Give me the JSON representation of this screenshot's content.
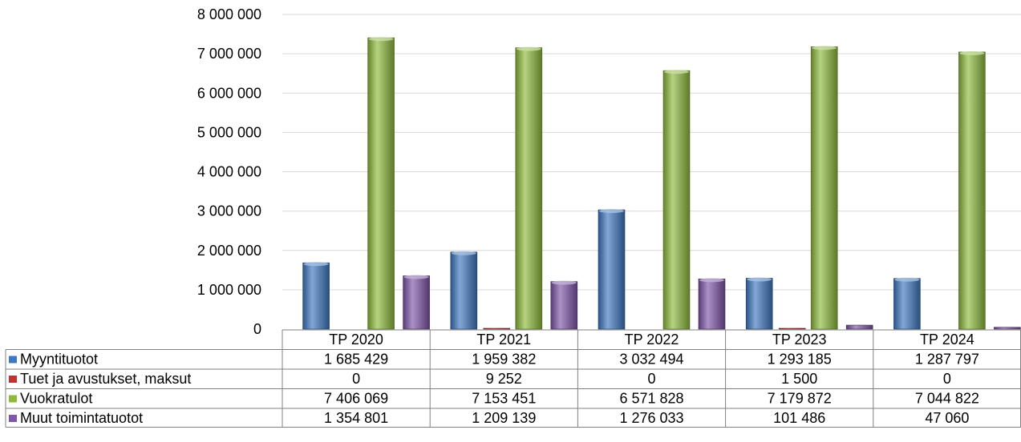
{
  "chart_data": {
    "type": "bar",
    "title": "",
    "xlabel": "",
    "ylabel": "",
    "ylim": [
      0,
      8000000
    ],
    "yticks": [
      0,
      1000000,
      2000000,
      3000000,
      4000000,
      5000000,
      6000000,
      7000000,
      8000000
    ],
    "ytick_labels": [
      "0",
      "1 000 000",
      "2 000 000",
      "3 000 000",
      "4 000 000",
      "5 000 000",
      "6 000 000",
      "7 000 000",
      "8 000 000"
    ],
    "grid": true,
    "legend": "data-table-left",
    "categories": [
      "TP 2020",
      "TP 2021",
      "TP 2022",
      "TP 2023",
      "TP 2024"
    ],
    "series": [
      {
        "name": "Myyntituotot",
        "color": "#3E78C2",
        "values": [
          1685429,
          1959382,
          3032494,
          1293185,
          1287797
        ],
        "labels": [
          "1 685 429",
          "1 959 382",
          "3 032 494",
          "1 293 185",
          "1 287 797"
        ]
      },
      {
        "name": "Tuet ja avustukset, maksut",
        "color": "#C0332E",
        "values": [
          0,
          9252,
          0,
          1500,
          0
        ],
        "labels": [
          "0",
          "9 252",
          "0",
          "1 500",
          "0"
        ]
      },
      {
        "name": "Vuokratulot",
        "color": "#8DBB3C",
        "values": [
          7406069,
          7153451,
          6571828,
          7179872,
          7044822
        ],
        "labels": [
          "7 406 069",
          "7 153 451",
          "6 571 828",
          "7 179 872",
          "7 044 822"
        ]
      },
      {
        "name": "Muut toimintatuotot",
        "color": "#7E55A8",
        "values": [
          1354801,
          1209139,
          1276033,
          101486,
          47060
        ],
        "labels": [
          "1 354 801",
          "1 209 139",
          "1 276 033",
          "101 486",
          "47 060"
        ]
      }
    ]
  }
}
